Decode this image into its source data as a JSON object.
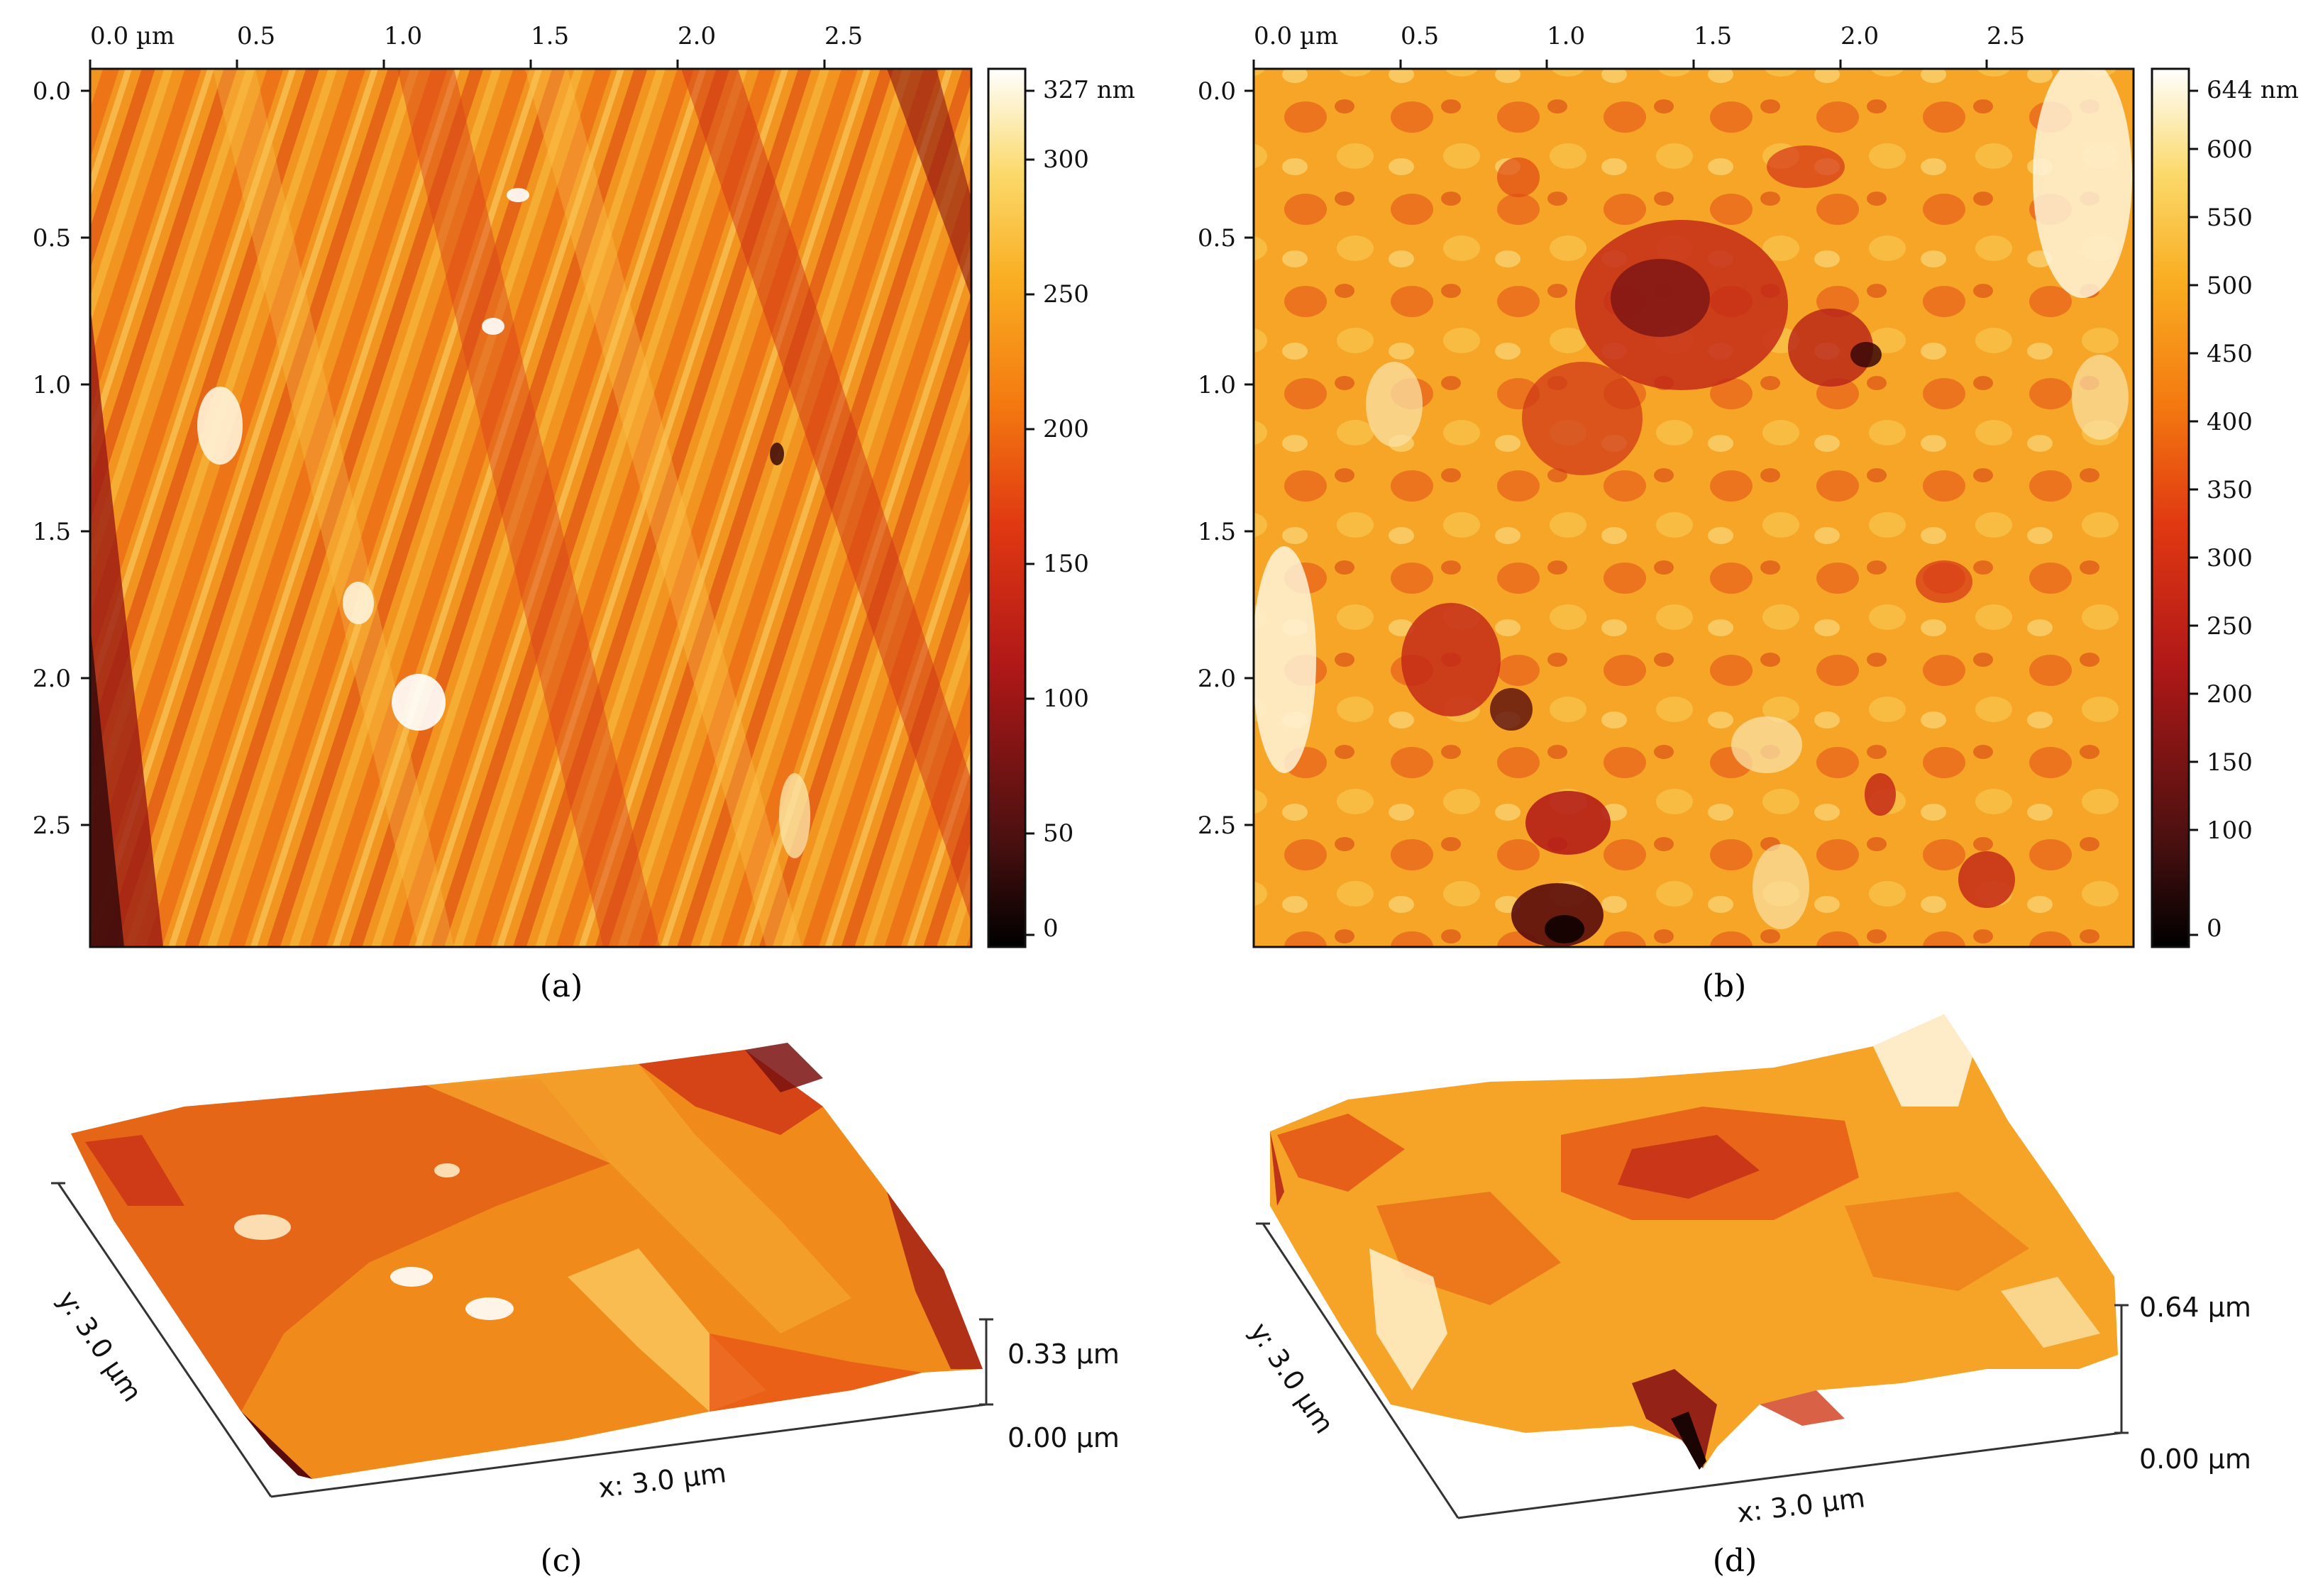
{
  "colors": {
    "colormap": [
      "#000000",
      "#4a1010",
      "#b01818",
      "#e03812",
      "#f47a10",
      "#f9ae22",
      "#fbd96a",
      "#ffffff"
    ]
  },
  "panel_a": {
    "x_ticks": [
      "0.0 µm",
      "0.5",
      "1.0",
      "1.5",
      "2.0",
      "2.5"
    ],
    "y_ticks": [
      "0.0",
      "0.5",
      "1.0",
      "1.5",
      "2.0",
      "2.5"
    ],
    "colorbar_ticks": [
      "327 nm",
      "300",
      "250",
      "200",
      "150",
      "100",
      "50",
      "0"
    ],
    "caption": "(a)"
  },
  "panel_b": {
    "x_ticks": [
      "0.0 µm",
      "0.5",
      "1.0",
      "1.5",
      "2.0",
      "2.5"
    ],
    "y_ticks": [
      "0.0",
      "0.5",
      "1.0",
      "1.5",
      "2.0",
      "2.5"
    ],
    "colorbar_ticks": [
      "644 nm",
      "600",
      "550",
      "500",
      "450",
      "400",
      "350",
      "300",
      "250",
      "200",
      "150",
      "100",
      "0"
    ],
    "caption": "(b)"
  },
  "panel_c": {
    "x_label": "x: 3.0 µm",
    "y_label": "y: 3.0 µm",
    "z_top": "0.33 µm",
    "z_bottom": "0.00 µm",
    "caption": "(c)"
  },
  "panel_d": {
    "x_label": "x: 3.0 µm",
    "y_label": "y: 3.0 µm",
    "z_top": "0.64 µm",
    "z_bottom": "0.00 µm",
    "caption": "(d)"
  }
}
